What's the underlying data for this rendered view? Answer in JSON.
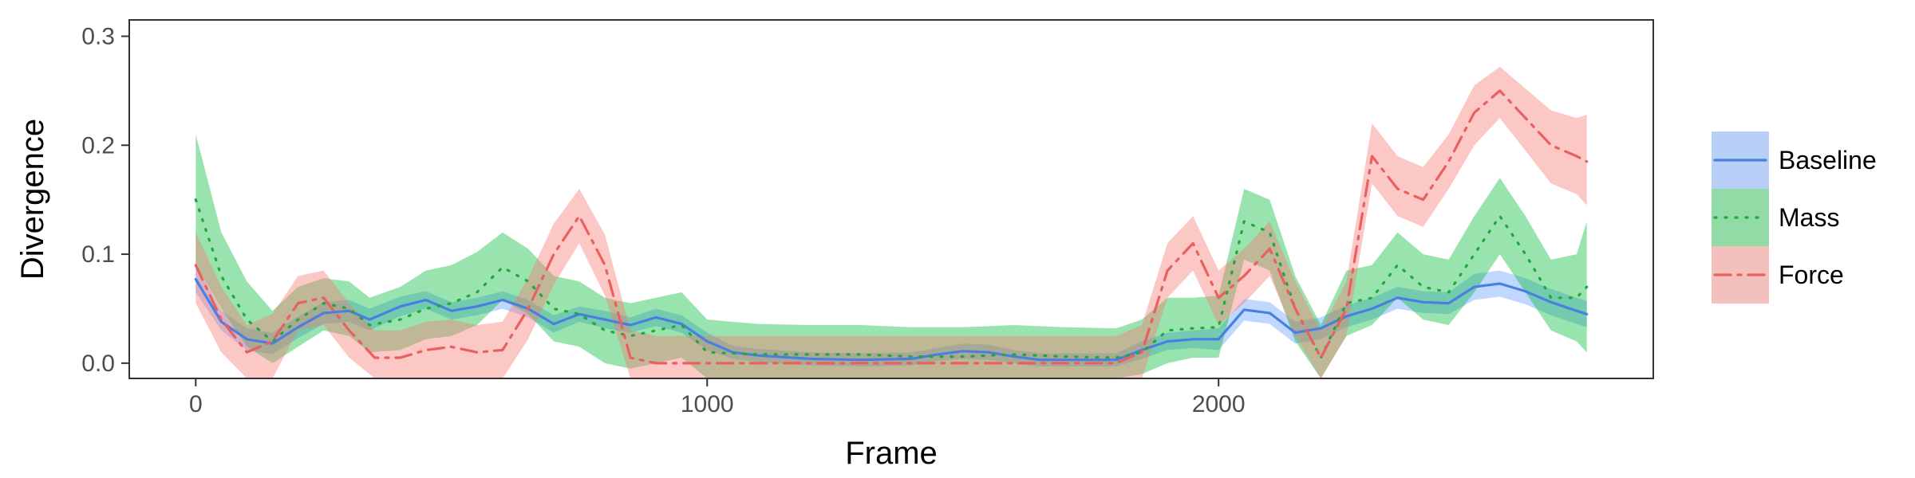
{
  "chart_data": {
    "type": "line",
    "title": "",
    "xlabel": "Frame",
    "ylabel": "Divergence",
    "xlim": [
      -130,
      2850
    ],
    "ylim": [
      -0.014,
      0.315
    ],
    "x_ticks": [
      0,
      1000,
      2000
    ],
    "x_tick_labels": [
      "0",
      "1000",
      "2000"
    ],
    "y_ticks": [
      0.0,
      0.1,
      0.2,
      0.3
    ],
    "y_tick_labels": [
      "0.0",
      "0.1",
      "0.2",
      "0.3"
    ],
    "grid": false,
    "legend_position": "right",
    "series": [
      {
        "name": "Baseline",
        "color": "#619CFF",
        "line_color": "#4A7FE0",
        "dash": "solid",
        "x": [
          0,
          50,
          100,
          150,
          200,
          250,
          300,
          340,
          400,
          450,
          500,
          550,
          600,
          650,
          700,
          750,
          800,
          850,
          900,
          950,
          1000,
          1050,
          1100,
          1200,
          1300,
          1400,
          1450,
          1500,
          1550,
          1600,
          1650,
          1700,
          1750,
          1800,
          1850,
          1900,
          1950,
          2000,
          2050,
          2100,
          2150,
          2200,
          2250,
          2300,
          2350,
          2400,
          2450,
          2500,
          2550,
          2600,
          2650,
          2700,
          2720
        ],
        "y": [
          0.077,
          0.038,
          0.022,
          0.018,
          0.033,
          0.046,
          0.048,
          0.04,
          0.052,
          0.058,
          0.048,
          0.052,
          0.058,
          0.05,
          0.036,
          0.045,
          0.04,
          0.035,
          0.042,
          0.036,
          0.02,
          0.01,
          0.007,
          0.004,
          0.003,
          0.004,
          0.008,
          0.011,
          0.01,
          0.006,
          0.003,
          0.003,
          0.003,
          0.003,
          0.012,
          0.02,
          0.022,
          0.022,
          0.049,
          0.046,
          0.028,
          0.032,
          0.043,
          0.05,
          0.06,
          0.056,
          0.055,
          0.07,
          0.073,
          0.066,
          0.056,
          0.048,
          0.045
        ],
        "lower": [
          0.065,
          0.03,
          0.012,
          0.008,
          0.023,
          0.036,
          0.038,
          0.03,
          0.043,
          0.05,
          0.04,
          0.044,
          0.05,
          0.042,
          0.028,
          0.038,
          0.032,
          0.028,
          0.034,
          0.028,
          0.012,
          0.004,
          0.001,
          -0.002,
          -0.003,
          -0.002,
          0.002,
          0.004,
          0.003,
          0.0,
          -0.003,
          -0.003,
          -0.003,
          -0.003,
          0.004,
          0.012,
          0.014,
          0.012,
          0.039,
          0.036,
          0.018,
          0.022,
          0.033,
          0.04,
          0.05,
          0.046,
          0.045,
          0.058,
          0.061,
          0.054,
          0.044,
          0.036,
          0.033
        ],
        "upper": [
          0.09,
          0.048,
          0.032,
          0.028,
          0.043,
          0.056,
          0.058,
          0.05,
          0.061,
          0.066,
          0.056,
          0.06,
          0.066,
          0.058,
          0.044,
          0.052,
          0.048,
          0.042,
          0.05,
          0.044,
          0.028,
          0.016,
          0.013,
          0.01,
          0.009,
          0.01,
          0.014,
          0.018,
          0.017,
          0.012,
          0.009,
          0.009,
          0.009,
          0.009,
          0.02,
          0.028,
          0.03,
          0.032,
          0.059,
          0.056,
          0.038,
          0.042,
          0.053,
          0.06,
          0.07,
          0.066,
          0.065,
          0.082,
          0.085,
          0.078,
          0.068,
          0.06,
          0.057
        ]
      },
      {
        "name": "Mass",
        "color": "#00BA38",
        "line_color": "#22A83A",
        "dash": "dotted",
        "x": [
          0,
          50,
          100,
          150,
          200,
          250,
          300,
          340,
          400,
          450,
          500,
          550,
          600,
          650,
          700,
          750,
          800,
          850,
          900,
          950,
          1000,
          1100,
          1200,
          1300,
          1400,
          1500,
          1600,
          1700,
          1800,
          1850,
          1900,
          1950,
          2000,
          2050,
          2100,
          2150,
          2200,
          2250,
          2300,
          2350,
          2400,
          2450,
          2500,
          2550,
          2600,
          2650,
          2700,
          2720
        ],
        "y": [
          0.15,
          0.08,
          0.04,
          0.02,
          0.04,
          0.055,
          0.05,
          0.035,
          0.04,
          0.05,
          0.055,
          0.065,
          0.088,
          0.075,
          0.05,
          0.045,
          0.03,
          0.025,
          0.03,
          0.035,
          0.01,
          0.008,
          0.008,
          0.008,
          0.006,
          0.006,
          0.008,
          0.006,
          0.005,
          0.01,
          0.03,
          0.032,
          0.033,
          0.13,
          0.12,
          0.05,
          0.005,
          0.055,
          0.06,
          0.09,
          0.07,
          0.065,
          0.1,
          0.135,
          0.1,
          0.06,
          0.06,
          0.07
        ],
        "lower": [
          0.09,
          0.05,
          0.015,
          0.0,
          0.015,
          0.03,
          0.025,
          0.01,
          0.012,
          0.022,
          0.025,
          0.035,
          0.058,
          0.045,
          0.02,
          0.015,
          0.0,
          -0.005,
          0.0,
          0.005,
          -0.014,
          -0.014,
          -0.014,
          -0.014,
          -0.014,
          -0.014,
          -0.014,
          -0.014,
          -0.014,
          -0.01,
          0.0,
          0.005,
          0.005,
          0.095,
          0.085,
          0.02,
          -0.014,
          0.025,
          0.035,
          0.06,
          0.04,
          0.035,
          0.065,
          0.1,
          0.065,
          0.03,
          0.02,
          0.01
        ],
        "upper": [
          0.21,
          0.12,
          0.075,
          0.048,
          0.07,
          0.078,
          0.075,
          0.06,
          0.07,
          0.085,
          0.09,
          0.102,
          0.12,
          0.105,
          0.08,
          0.075,
          0.06,
          0.055,
          0.06,
          0.065,
          0.04,
          0.036,
          0.035,
          0.035,
          0.033,
          0.033,
          0.035,
          0.033,
          0.032,
          0.04,
          0.06,
          0.06,
          0.062,
          0.16,
          0.15,
          0.08,
          0.035,
          0.085,
          0.09,
          0.12,
          0.1,
          0.095,
          0.135,
          0.17,
          0.135,
          0.095,
          0.1,
          0.13
        ]
      },
      {
        "name": "Force",
        "color": "#F8766D",
        "line_color": "#E86060",
        "dash": "dashdot",
        "x": [
          0,
          50,
          100,
          150,
          200,
          250,
          300,
          350,
          400,
          450,
          500,
          550,
          600,
          650,
          700,
          750,
          800,
          850,
          900,
          950,
          1000,
          1100,
          1200,
          1300,
          1400,
          1500,
          1600,
          1700,
          1800,
          1850,
          1900,
          1950,
          2000,
          2050,
          2100,
          2150,
          2200,
          2250,
          2300,
          2350,
          2400,
          2450,
          2500,
          2550,
          2600,
          2650,
          2700,
          2720
        ],
        "y": [
          0.09,
          0.04,
          0.01,
          0.02,
          0.055,
          0.06,
          0.03,
          0.005,
          0.005,
          0.012,
          0.015,
          0.01,
          0.012,
          0.05,
          0.1,
          0.135,
          0.09,
          0.005,
          0.0,
          0.0,
          0.0,
          0.0,
          0.0,
          0.0,
          0.0,
          0.0,
          0.0,
          0.0,
          0.0,
          0.01,
          0.085,
          0.11,
          0.06,
          0.08,
          0.105,
          0.05,
          0.005,
          0.05,
          0.19,
          0.16,
          0.15,
          0.185,
          0.23,
          0.25,
          0.225,
          0.2,
          0.19,
          0.185
        ],
        "lower": [
          0.055,
          0.01,
          -0.014,
          -0.014,
          0.03,
          0.035,
          0.005,
          -0.014,
          -0.014,
          -0.014,
          -0.014,
          -0.014,
          -0.014,
          0.022,
          0.072,
          0.11,
          0.062,
          -0.014,
          -0.014,
          -0.014,
          -0.014,
          -0.014,
          -0.014,
          -0.014,
          -0.014,
          -0.014,
          -0.014,
          -0.014,
          -0.014,
          -0.014,
          0.06,
          0.085,
          0.035,
          0.055,
          0.08,
          0.025,
          -0.014,
          0.025,
          0.165,
          0.135,
          0.125,
          0.16,
          0.2,
          0.225,
          0.195,
          0.165,
          0.155,
          0.145
        ],
        "upper": [
          0.12,
          0.07,
          0.035,
          0.045,
          0.08,
          0.085,
          0.055,
          0.03,
          0.03,
          0.038,
          0.04,
          0.035,
          0.038,
          0.078,
          0.128,
          0.16,
          0.118,
          0.03,
          0.025,
          0.025,
          0.025,
          0.025,
          0.025,
          0.025,
          0.025,
          0.025,
          0.025,
          0.025,
          0.025,
          0.035,
          0.11,
          0.135,
          0.085,
          0.105,
          0.13,
          0.075,
          0.03,
          0.075,
          0.22,
          0.19,
          0.18,
          0.21,
          0.255,
          0.272,
          0.252,
          0.232,
          0.225,
          0.228
        ]
      }
    ]
  }
}
